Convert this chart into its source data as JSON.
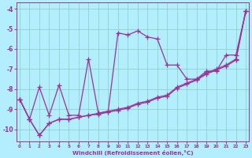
{
  "x": [
    0,
    1,
    2,
    3,
    4,
    5,
    6,
    7,
    8,
    9,
    10,
    11,
    12,
    13,
    14,
    15,
    16,
    17,
    18,
    19,
    20,
    21,
    22,
    23
  ],
  "series": [
    [
      -8.5,
      -9.5,
      -7.9,
      -9.3,
      -7.8,
      -9.3,
      -9.3,
      -6.5,
      -9.2,
      -9.1,
      -5.2,
      -5.3,
      -5.1,
      -5.4,
      -5.5,
      -6.8,
      -6.8,
      -7.5,
      -7.5,
      -7.1,
      -7.1,
      -6.3,
      -6.3,
      -4.1
    ],
    [
      -8.5,
      -9.5,
      -10.3,
      -9.7,
      -9.5,
      -9.5,
      -9.4,
      -9.3,
      -9.2,
      -9.1,
      -9.0,
      -8.9,
      -8.7,
      -8.6,
      -8.4,
      -8.3,
      -7.9,
      -7.7,
      -7.5,
      -7.2,
      -7.0,
      -6.8,
      -6.5,
      -4.1
    ],
    [
      -8.5,
      -9.5,
      -10.3,
      -9.7,
      -9.5,
      -9.5,
      -9.4,
      -9.3,
      -9.25,
      -9.15,
      -9.05,
      -8.95,
      -8.75,
      -8.65,
      -8.45,
      -8.35,
      -7.95,
      -7.75,
      -7.55,
      -7.25,
      -7.05,
      -6.85,
      -6.55,
      -4.1
    ]
  ],
  "line_color": "#993399",
  "marker": "+",
  "markersize": 4,
  "linewidth": 0.9,
  "xlim": [
    -0.3,
    23.3
  ],
  "ylim": [
    -10.6,
    -3.7
  ],
  "xlabel": "Windchill (Refroidissement éolien,°C)",
  "bg_color": "#b3eeff",
  "grid_color": "#88ccbb",
  "yticks": [
    -10,
    -9,
    -8,
    -7,
    -6,
    -5,
    -4
  ],
  "xticks": [
    0,
    1,
    2,
    3,
    4,
    5,
    6,
    7,
    8,
    9,
    10,
    11,
    12,
    13,
    14,
    15,
    16,
    17,
    18,
    19,
    20,
    21,
    22,
    23
  ]
}
